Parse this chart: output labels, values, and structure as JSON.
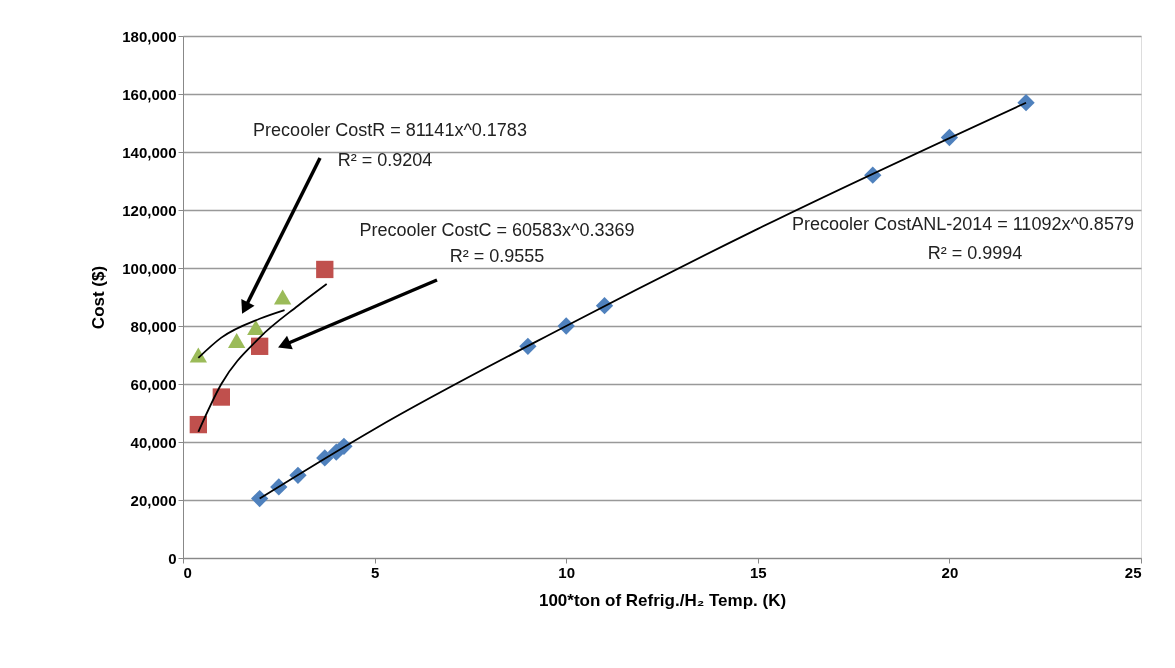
{
  "chart_data": {
    "type": "scatter",
    "xlabel": "100*ton of Refrig./H₂ Temp. (K)",
    "ylabel": "Cost ($)",
    "xlim": [
      0,
      25
    ],
    "xticks": [
      0,
      5,
      10,
      15,
      20,
      25
    ],
    "ylim": [
      0,
      180000
    ],
    "yticks": [
      {
        "value": 0,
        "label": "0"
      },
      {
        "value": 20000,
        "label": "20,000"
      },
      {
        "value": 40000,
        "label": "40,000"
      },
      {
        "value": 60000,
        "label": "60,000"
      },
      {
        "value": 80000,
        "label": "80,000"
      },
      {
        "value": 100000,
        "label": "100,000"
      },
      {
        "value": 120000,
        "label": "120,000"
      },
      {
        "value": 140000,
        "label": "140,000"
      },
      {
        "value": 160000,
        "label": "160,000"
      },
      {
        "value": 180000,
        "label": "180,000"
      }
    ],
    "grid": "y",
    "series": [
      {
        "marker": "diamond",
        "color": "#4f81bd",
        "x": [
          2,
          2.5,
          3,
          3.7,
          4,
          4.2,
          9,
          10,
          11,
          18,
          20,
          22
        ],
        "values": [
          20500,
          24500,
          28500,
          34500,
          36500,
          38500,
          73000,
          80000,
          87000,
          132000,
          145000,
          157000
        ]
      },
      {
        "marker": "square",
        "color": "#c0504d",
        "x": [
          0.4,
          1,
          2,
          3.7
        ],
        "values": [
          46000,
          55500,
          73000,
          99500
        ]
      },
      {
        "marker": "triangle",
        "color": "#9bbb59",
        "x": [
          0.4,
          1.4,
          1.9,
          2.6
        ],
        "values": [
          70000,
          75000,
          79500,
          90000
        ]
      },
      {
        "type": "line",
        "color": "#000000",
        "x": [
          2,
          5,
          10,
          15,
          22
        ],
        "values": [
          20500,
          44500,
          80000,
          113500,
          157000
        ]
      },
      {
        "type": "line",
        "color": "#000000",
        "x": [
          0.4,
          1,
          2,
          3,
          3.75
        ],
        "values": [
          43500,
          60000,
          76000,
          87000,
          94500
        ]
      },
      {
        "type": "line",
        "color": "#000000",
        "x": [
          0.4,
          1,
          2,
          2.65
        ],
        "values": [
          69000,
          76000,
          82500,
          85500
        ]
      }
    ],
    "annotations": [
      "Precooler CostR = 81141x^0.1783",
      "R² = 0.9204",
      "Precooler CostC = 60583x^0.3369",
      "R² = 0.9555",
      "Precooler CostANL-2014 = 11092x^0.8579",
      "R² = 0.9994"
    ]
  }
}
